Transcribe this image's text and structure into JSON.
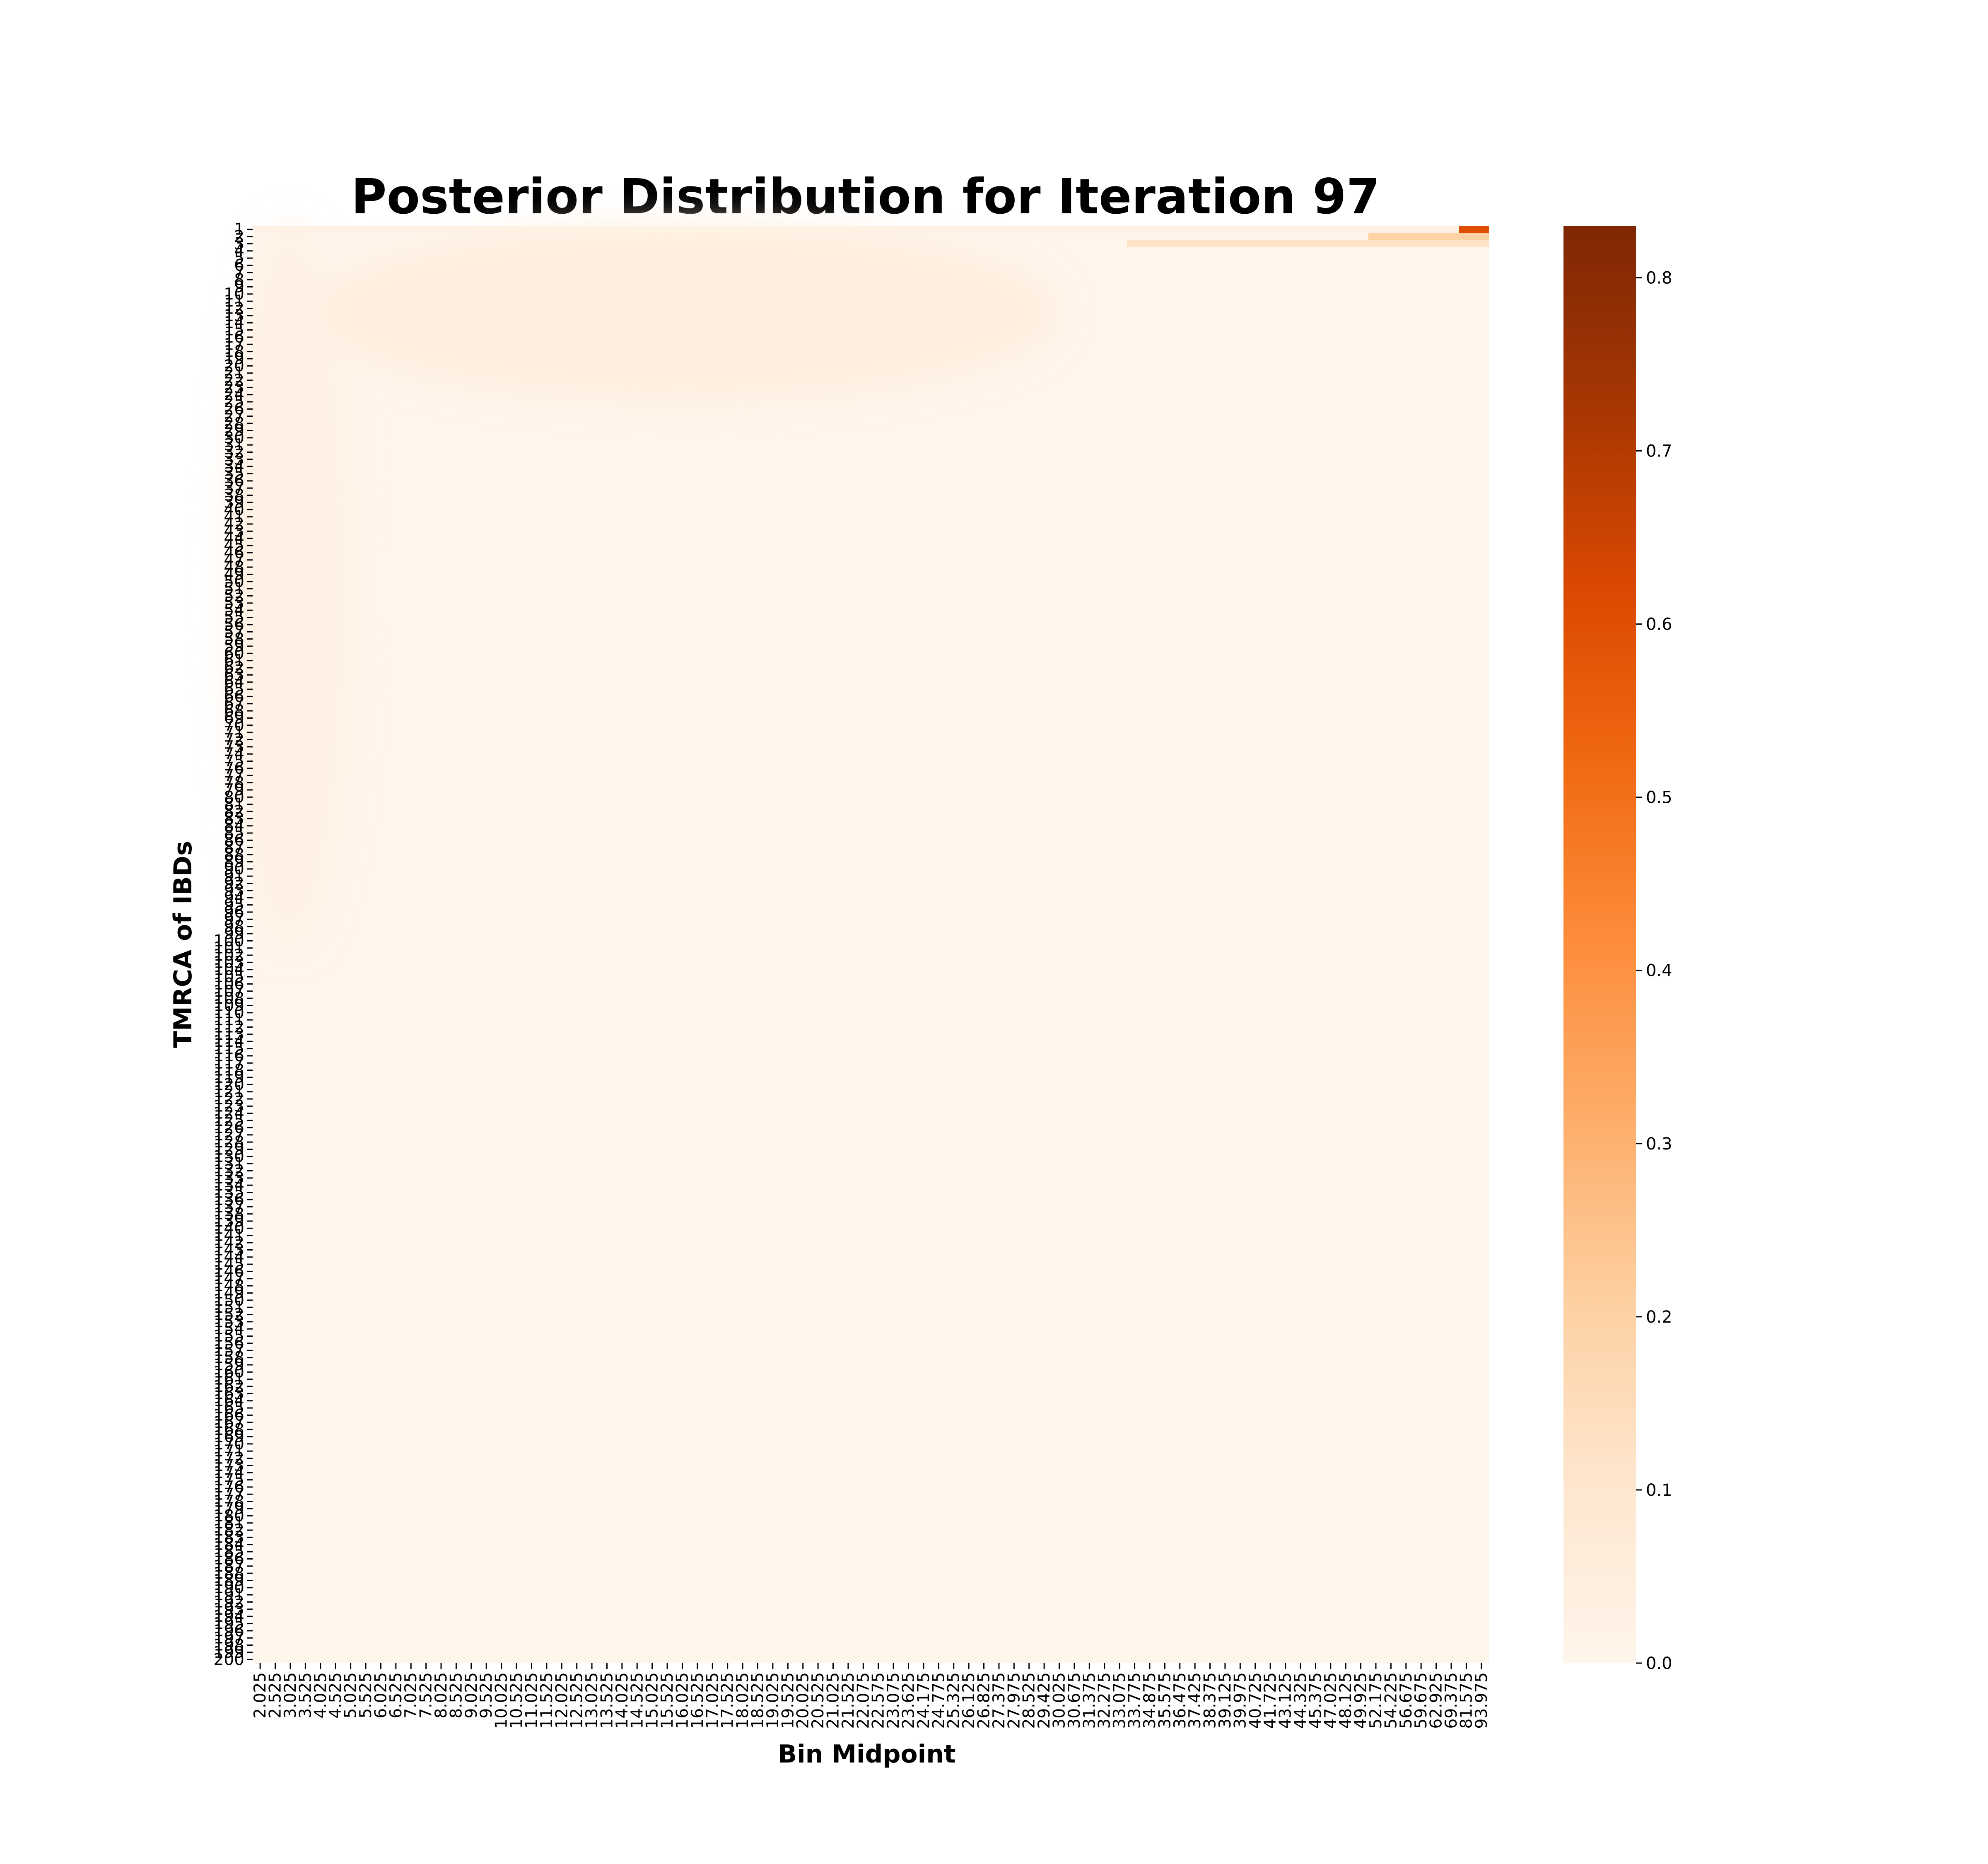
{
  "chart_data": {
    "type": "heatmap",
    "title": "Posterior Distribution for Iteration 97",
    "xlabel": "Bin Midpoint",
    "ylabel": "TMRCA of IBDs",
    "x_tick_labels": [
      "2.025",
      "2.525",
      "3.025",
      "3.525",
      "4.025",
      "4.525",
      "5.025",
      "5.525",
      "6.025",
      "6.525",
      "7.025",
      "7.525",
      "8.025",
      "8.525",
      "9.025",
      "9.525",
      "10.025",
      "10.525",
      "11.025",
      "11.525",
      "12.025",
      "12.525",
      "13.025",
      "13.525",
      "14.025",
      "14.525",
      "15.025",
      "15.525",
      "16.025",
      "16.525",
      "17.025",
      "17.525",
      "18.025",
      "18.525",
      "19.025",
      "19.525",
      "20.025",
      "20.525",
      "21.025",
      "21.525",
      "22.075",
      "22.575",
      "23.075",
      "23.625",
      "24.175",
      "24.775",
      "25.325",
      "26.125",
      "26.825",
      "27.375",
      "27.975",
      "28.525",
      "29.425",
      "30.025",
      "30.675",
      "31.375",
      "32.275",
      "33.075",
      "33.775",
      "34.875",
      "35.575",
      "36.475",
      "37.425",
      "38.375",
      "39.125",
      "39.975",
      "40.725",
      "41.725",
      "43.125",
      "44.325",
      "45.375",
      "47.025",
      "48.125",
      "49.925",
      "52.175",
      "54.225",
      "56.675",
      "59.675",
      "62.925",
      "69.375",
      "81.575",
      "93.975"
    ],
    "y_min": 1,
    "y_max": 200,
    "y_tick_step": 1,
    "colorbar": {
      "colormap": "Oranges",
      "min": 0.0,
      "max": 0.83,
      "ticks": [
        "0.0",
        "0.1",
        "0.2",
        "0.3",
        "0.4",
        "0.5",
        "0.6",
        "0.7",
        "0.8"
      ],
      "colors": [
        "#fff5eb",
        "#fee6ce",
        "#fdd0a2",
        "#fdae6b",
        "#fd8d3c",
        "#f16913",
        "#d94801",
        "#a63603",
        "#7f2704"
      ]
    },
    "hotspots": [
      {
        "x_from": "81.575",
        "x_to": "93.975",
        "y": 1,
        "value": 0.6
      },
      {
        "x_from": "52.175",
        "x_to": "93.975",
        "y": 2,
        "value": 0.2
      },
      {
        "x_from": "33.775",
        "x_to": "93.975",
        "y": 3,
        "value": 0.12
      },
      {
        "x_from": "2.025",
        "x_to": "93.975",
        "y": 1,
        "value": 0.03
      }
    ]
  }
}
